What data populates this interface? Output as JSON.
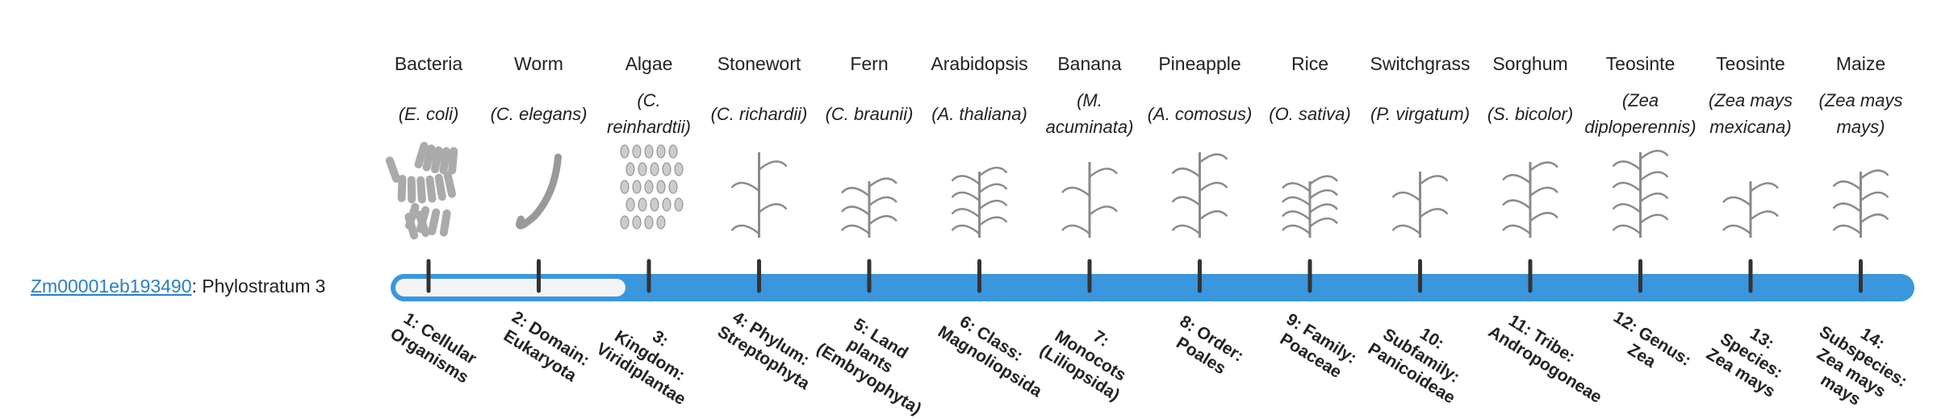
{
  "gene_id": "Zm00001eb193490",
  "phylostratum_text": ": Phylostratum",
  "phylostratum": 3,
  "organisms": [
    {
      "name": "Bacteria",
      "species": "(E. coli)"
    },
    {
      "name": "Worm",
      "species": "(C. elegans)"
    },
    {
      "name": "Algae",
      "species": "(C. reinhardtii)"
    },
    {
      "name": "Stonewort",
      "species": "(C. richardii)"
    },
    {
      "name": "Fern",
      "species": "(C. braunii)"
    },
    {
      "name": "Arabidopsis",
      "species": "(A. thaliana)"
    },
    {
      "name": "Banana",
      "species": "(M. acuminata)"
    },
    {
      "name": "Pineapple",
      "species": "(A. comosus)"
    },
    {
      "name": "Rice",
      "species": "(O. sativa)"
    },
    {
      "name": "Switchgrass",
      "species": "(P. virgatum)"
    },
    {
      "name": "Sorghum",
      "species": "(S. bicolor)"
    },
    {
      "name": "Teosinte",
      "species": "(Zea diploperennis)"
    },
    {
      "name": "Teosinte",
      "species": "(Zea mays mexicana)"
    },
    {
      "name": "Maize",
      "species": "(Zea mays mays)"
    }
  ],
  "strata": [
    "1: Cellular Organisms",
    "2: Domain: Eukaryota",
    "3: Kingdom: Viridiplantae",
    "4: Phylum: Streptophyta",
    "5: Land plants (Embryophyta)",
    "6: Class: Magnoliopsida",
    "7: Monocots (Liliopsida)",
    "8: Order: Poales",
    "9: Family: Poaceae",
    "10: Subfamily: Panicoideae",
    "11: Tribe: Andropogoneae",
    "12: Genus: Zea",
    "13: Species: Zea mays",
    "14: Subspecies: Zea mays mays"
  ]
}
